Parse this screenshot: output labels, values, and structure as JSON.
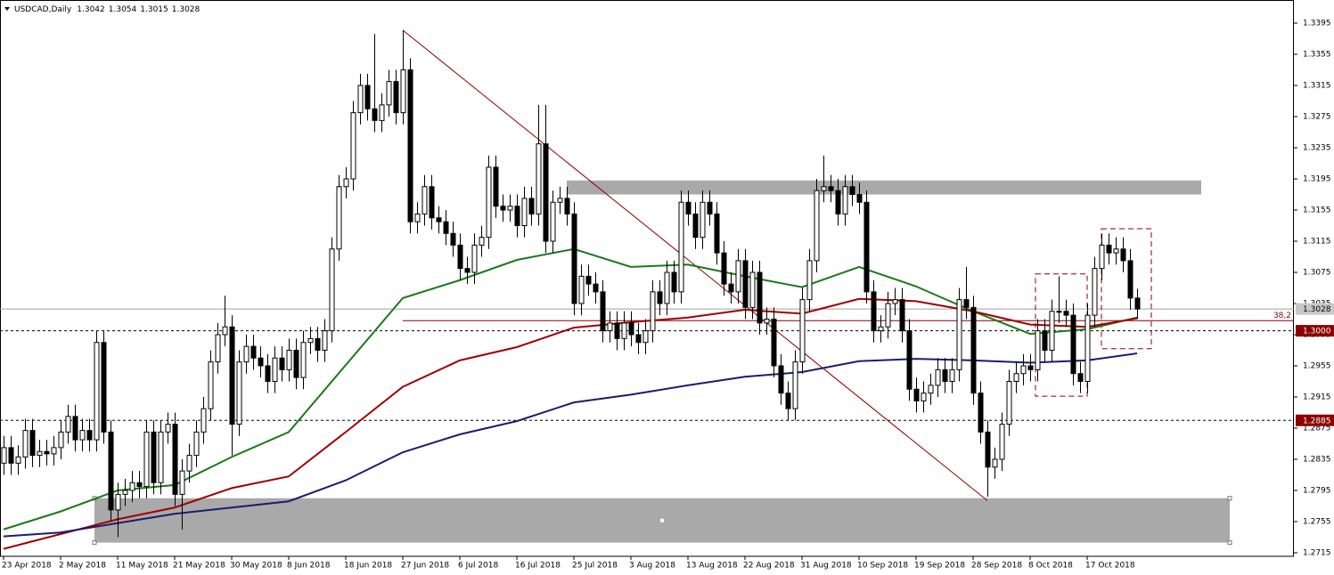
{
  "chart_data": {
    "type": "candlestick",
    "title": "USDCAD,Daily",
    "categories": [
      "23 Apr 2018",
      null,
      null,
      null,
      null,
      null,
      null,
      null,
      "2 May 2018",
      null,
      null,
      null,
      null,
      null,
      null,
      null,
      "11 May 2018",
      null,
      null,
      null,
      null,
      null,
      null,
      null,
      "21 May 2018",
      null,
      null,
      null,
      null,
      null,
      null,
      null,
      "30 May 2018",
      null,
      null,
      null,
      null,
      null,
      null,
      null,
      "8 Jun 2018",
      null,
      null,
      null,
      null,
      null,
      null,
      null,
      "18 Jun 2018",
      null,
      null,
      null,
      null,
      null,
      null,
      null,
      "27 Jun 2018",
      null,
      null,
      null,
      null,
      null,
      null,
      null,
      "6 Jul 2018",
      null,
      null,
      null,
      null,
      null,
      null,
      null,
      "16 Jul 2018",
      null,
      null,
      null,
      null,
      null,
      null,
      null,
      "25 Jul 2018",
      null,
      null,
      null,
      null,
      null,
      null,
      null,
      "3 Aug 2018",
      null,
      null,
      null,
      null,
      null,
      null,
      null,
      "13 Aug 2018",
      null,
      null,
      null,
      null,
      null,
      null,
      null,
      "22 Aug 2018",
      null,
      null,
      null,
      null,
      null,
      null,
      null,
      "31 Aug 2018",
      null,
      null,
      null,
      null,
      null,
      null,
      null,
      "10 Sep 2018",
      null,
      null,
      null,
      null,
      null,
      null,
      null,
      "19 Sep 2018",
      null,
      null,
      null,
      null,
      null,
      null,
      null,
      "28 Sep 2018",
      null,
      null,
      null,
      null,
      null,
      null,
      null,
      "8 Oct 2018",
      null,
      null,
      null,
      null,
      null,
      null,
      null,
      "17 Oct 2018",
      null,
      null,
      null,
      null,
      null,
      null,
      null
    ],
    "open": [
      1.283,
      1.285,
      1.283,
      1.2838,
      1.2872,
      1.284,
      1.2845,
      1.2842,
      1.285,
      1.287,
      1.289,
      1.286,
      1.2872,
      1.286,
      1.2985,
      1.287,
      1.277,
      1.279,
      1.2795,
      1.2805,
      1.28,
      1.287,
      1.2805,
      1.287,
      1.288,
      1.279,
      1.282,
      1.284,
      1.287,
      1.29,
      1.296,
      1.2995,
      1.3005,
      1.288,
      1.296,
      1.298,
      1.2965,
      1.2955,
      1.2935,
      1.2965,
      1.295,
      1.2975,
      1.294,
      1.2985,
      1.299,
      1.2975,
      1.3,
      1.3105,
      1.3185,
      1.3195,
      1.328,
      1.3315,
      1.3285,
      1.327,
      1.329,
      1.332,
      1.328,
      1.3335,
      1.314,
      1.315,
      1.3185,
      1.3145,
      1.314,
      1.3125,
      1.311,
      1.308,
      1.3075,
      1.311,
      1.312,
      1.321,
      1.316,
      1.3155,
      1.316,
      1.3135,
      1.317,
      1.315,
      1.324,
      1.3115,
      1.3165,
      1.317,
      1.315,
      1.3035,
      1.307,
      1.306,
      1.305,
      1.3,
      1.301,
      1.299,
      1.301,
      1.2995,
      1.2985,
      1.3,
      1.305,
      1.3035,
      1.3075,
      1.305,
      1.3165,
      1.315,
      1.312,
      1.3165,
      1.315,
      1.31,
      1.306,
      1.305,
      1.309,
      1.303,
      1.3075,
      1.301,
      1.3015,
      1.2955,
      1.292,
      1.29,
      1.296,
      1.304,
      1.309,
      1.318,
      1.3185,
      1.318,
      1.315,
      1.3185,
      1.3175,
      1.3165,
      1.305,
      1.3,
      1.3005,
      1.3035,
      1.304,
      1.3,
      1.2925,
      1.291,
      1.292,
      1.293,
      1.295,
      1.2935,
      1.295,
      1.304,
      1.303,
      1.292,
      1.287,
      1.2825,
      1.2835,
      1.288,
      1.2935,
      1.2945,
      1.2955,
      1.295,
      1.3,
      1.2975,
      1.3025,
      1.3025,
      1.302,
      1.2945,
      1.2935,
      1.302,
      1.308,
      1.311,
      1.31,
      1.3105,
      1.309,
      1.3042
    ],
    "high": [
      1.2865,
      1.2865,
      1.2853,
      1.2887,
      1.2887,
      1.286,
      1.286,
      1.2865,
      1.2885,
      1.2905,
      1.2905,
      1.2887,
      1.2887,
      1.3,
      1.3,
      1.2885,
      1.2805,
      1.281,
      1.282,
      1.282,
      1.2885,
      1.2885,
      1.2885,
      1.2895,
      1.2895,
      1.2835,
      1.2855,
      1.2885,
      1.2915,
      1.2975,
      1.301,
      1.3045,
      1.302,
      1.2975,
      1.2995,
      1.2995,
      1.298,
      1.297,
      1.298,
      1.298,
      1.299,
      1.299,
      1.3,
      1.3005,
      1.3005,
      1.3015,
      1.312,
      1.32,
      1.321,
      1.3295,
      1.333,
      1.333,
      1.3381,
      1.3305,
      1.3335,
      1.3335,
      1.3386,
      1.335,
      1.3165,
      1.32,
      1.32,
      1.316,
      1.3155,
      1.314,
      1.3125,
      1.3095,
      1.3125,
      1.3135,
      1.3225,
      1.3225,
      1.3175,
      1.3175,
      1.3175,
      1.3185,
      1.3185,
      1.329,
      1.329,
      1.318,
      1.3185,
      1.3185,
      1.3165,
      1.3085,
      1.3085,
      1.3075,
      1.3065,
      1.3025,
      1.3025,
      1.3025,
      1.3025,
      1.301,
      1.3015,
      1.3065,
      1.3065,
      1.309,
      1.309,
      1.318,
      1.318,
      1.3165,
      1.318,
      1.318,
      1.3165,
      1.3115,
      1.3075,
      1.3105,
      1.3105,
      1.309,
      1.309,
      1.303,
      1.303,
      1.297,
      1.2935,
      1.2975,
      1.3055,
      1.3105,
      1.3195,
      1.3225,
      1.32,
      1.3195,
      1.32,
      1.32,
      1.319,
      1.318,
      1.3065,
      1.302,
      1.305,
      1.3055,
      1.3055,
      1.3015,
      1.294,
      1.2935,
      1.2945,
      1.2965,
      1.2965,
      1.2965,
      1.3055,
      1.3082,
      1.3045,
      1.2935,
      1.2885,
      1.285,
      1.2895,
      1.295,
      1.296,
      1.297,
      1.297,
      1.3015,
      1.3015,
      1.304,
      1.307,
      1.304,
      1.3035,
      1.296,
      1.3035,
      1.3095,
      1.3125,
      1.3125,
      1.312,
      1.312,
      1.3105,
      1.3054
    ],
    "low": [
      1.2815,
      1.2815,
      1.2815,
      1.2823,
      1.2825,
      1.2825,
      1.2827,
      1.2827,
      1.2835,
      1.2855,
      1.2845,
      1.2845,
      1.2845,
      1.2845,
      1.2855,
      1.2755,
      1.2735,
      1.2775,
      1.278,
      1.2785,
      1.2785,
      1.279,
      1.279,
      1.2855,
      1.2775,
      1.2745,
      1.2805,
      1.2825,
      1.2855,
      1.2885,
      1.2945,
      1.298,
      1.284,
      1.2865,
      1.2945,
      1.295,
      1.294,
      1.292,
      1.292,
      1.2935,
      1.2935,
      1.2925,
      1.2925,
      1.297,
      1.296,
      1.296,
      1.2985,
      1.309,
      1.317,
      1.318,
      1.3265,
      1.327,
      1.3255,
      1.3255,
      1.3275,
      1.3265,
      1.3265,
      1.3125,
      1.3125,
      1.3135,
      1.313,
      1.3125,
      1.311,
      1.3095,
      1.3065,
      1.306,
      1.306,
      1.3095,
      1.3105,
      1.3145,
      1.314,
      1.314,
      1.312,
      1.312,
      1.3135,
      1.3135,
      1.31,
      1.31,
      1.315,
      1.3135,
      1.302,
      1.302,
      1.3045,
      1.3035,
      1.2985,
      1.2985,
      1.2975,
      1.2975,
      1.298,
      1.297,
      1.297,
      1.2985,
      1.302,
      1.302,
      1.3035,
      1.3035,
      1.3135,
      1.3105,
      1.3105,
      1.3135,
      1.3085,
      1.3045,
      1.3035,
      1.3035,
      1.3015,
      1.3015,
      1.2995,
      1.2995,
      1.294,
      1.2905,
      1.2885,
      1.2885,
      1.2945,
      1.3025,
      1.3075,
      1.3165,
      1.3165,
      1.3135,
      1.3135,
      1.316,
      1.315,
      1.3035,
      1.2985,
      1.2985,
      1.299,
      1.302,
      1.2985,
      1.291,
      1.2895,
      1.2895,
      1.2905,
      1.2915,
      1.292,
      1.292,
      1.2935,
      1.3015,
      1.2905,
      1.2855,
      1.2787,
      1.281,
      1.282,
      1.2865,
      1.292,
      1.293,
      1.2935,
      1.2935,
      1.296,
      1.296,
      1.301,
      1.3005,
      1.293,
      1.292,
      1.292,
      1.3005,
      1.3065,
      1.3085,
      1.3085,
      1.3075,
      1.3027,
      1.3015
    ],
    "close": [
      1.285,
      1.283,
      1.2838,
      1.2872,
      1.284,
      1.2845,
      1.2842,
      1.285,
      1.287,
      1.289,
      1.286,
      1.2872,
      1.286,
      1.2985,
      1.287,
      1.277,
      1.279,
      1.2795,
      1.2805,
      1.28,
      1.287,
      1.2805,
      1.287,
      1.288,
      1.279,
      1.282,
      1.284,
      1.287,
      1.29,
      1.296,
      1.2995,
      1.3005,
      1.288,
      1.296,
      1.298,
      1.2965,
      1.2955,
      1.2935,
      1.2965,
      1.295,
      1.2975,
      1.294,
      1.2985,
      1.299,
      1.2975,
      1.3,
      1.3105,
      1.3185,
      1.3195,
      1.328,
      1.3315,
      1.3285,
      1.327,
      1.329,
      1.332,
      1.328,
      1.3335,
      1.314,
      1.315,
      1.3185,
      1.3145,
      1.314,
      1.3125,
      1.311,
      1.308,
      1.3075,
      1.311,
      1.312,
      1.321,
      1.316,
      1.3155,
      1.316,
      1.3135,
      1.317,
      1.315,
      1.324,
      1.3115,
      1.3165,
      1.317,
      1.315,
      1.3035,
      1.307,
      1.306,
      1.305,
      1.3,
      1.301,
      1.299,
      1.301,
      1.2995,
      1.2985,
      1.3,
      1.305,
      1.3035,
      1.3075,
      1.305,
      1.3165,
      1.315,
      1.312,
      1.3165,
      1.315,
      1.31,
      1.306,
      1.305,
      1.309,
      1.303,
      1.3075,
      1.301,
      1.3015,
      1.2955,
      1.292,
      1.29,
      1.296,
      1.304,
      1.309,
      1.318,
      1.3185,
      1.318,
      1.315,
      1.3185,
      1.3175,
      1.3165,
      1.305,
      1.3,
      1.3005,
      1.3035,
      1.304,
      1.3,
      1.2925,
      1.291,
      1.292,
      1.293,
      1.295,
      1.2935,
      1.295,
      1.304,
      1.303,
      1.292,
      1.287,
      1.2825,
      1.2835,
      1.288,
      1.2935,
      1.2945,
      1.2955,
      1.295,
      1.3,
      1.2975,
      1.3025,
      1.3025,
      1.302,
      1.2945,
      1.2935,
      1.302,
      1.308,
      1.311,
      1.31,
      1.3105,
      1.309,
      1.3042,
      1.3028
    ],
    "lines": [
      {
        "color": "#1a7a1a",
        "x": [
          0,
          8,
          16,
          24,
          32,
          40,
          48,
          56,
          64,
          72,
          80,
          88,
          96,
          104,
          112,
          120,
          128,
          136,
          144,
          152,
          159
        ],
        "values": [
          1.2745,
          1.2768,
          1.2795,
          1.2802,
          1.2838,
          1.287,
          1.2956,
          1.3042,
          1.3065,
          1.3091,
          1.3105,
          1.3082,
          1.3085,
          1.307,
          1.3056,
          1.3082,
          1.3057,
          1.3025,
          1.2996,
          1.3002,
          1.3017
        ]
      },
      {
        "color": "#a00000",
        "x": [
          0,
          8,
          16,
          24,
          32,
          40,
          48,
          56,
          64,
          72,
          80,
          88,
          96,
          104,
          112,
          120,
          128,
          136,
          144,
          152,
          159
        ],
        "values": [
          1.272,
          1.2739,
          1.2758,
          1.2773,
          1.2798,
          1.2813,
          1.287,
          1.2928,
          1.2962,
          1.2979,
          1.3004,
          1.3011,
          1.3017,
          1.3027,
          1.3022,
          1.3041,
          1.3038,
          1.3025,
          1.3008,
          1.3005,
          1.3016
        ]
      },
      {
        "color": "#1c1c6e",
        "x": [
          0,
          8,
          16,
          24,
          32,
          40,
          48,
          56,
          64,
          72,
          80,
          88,
          96,
          104,
          112,
          120,
          128,
          136,
          144,
          152,
          159
        ],
        "values": [
          1.2736,
          1.2741,
          1.2753,
          1.2765,
          1.2773,
          1.2781,
          1.2808,
          1.2844,
          1.2867,
          1.2884,
          1.2908,
          1.2918,
          1.293,
          1.2941,
          1.2947,
          1.2961,
          1.2964,
          1.2962,
          1.2959,
          1.2962,
          1.2971
        ]
      }
    ],
    "zones": [
      {
        "x": [
          79,
          168
        ],
        "y": [
          1.3175,
          1.3193
        ],
        "color": "#a9a9a9"
      },
      {
        "x": [
          12.75,
          172
        ],
        "y": [
          1.2728,
          1.2785
        ],
        "color": "#a9a9a9"
      }
    ],
    "trendline": {
      "x": [
        56,
        138
      ],
      "y": [
        1.3386,
        1.2782
      ],
      "color": "#8b0000"
    },
    "boxes": [
      {
        "x": [
          144.75,
          152
        ],
        "y": [
          1.2916,
          1.3073
        ],
        "color": "#8b0000"
      },
      {
        "x": [
          154,
          161
        ],
        "y": [
          1.2977,
          1.3131
        ],
        "color": "#8b0000"
      }
    ],
    "fib": {
      "value": 1.3013,
      "label": "38,2",
      "from": 56,
      "color": "#8b0000"
    },
    "levels": [
      {
        "value": 1.3,
        "label": "1.3000",
        "color": "#8b0000"
      },
      {
        "value": 1.2885,
        "color": "#8b0000"
      }
    ],
    "ylim": [
      1.2715,
      1.3395
    ],
    "yticks": [
      1.3395,
      1.3355,
      1.3315,
      1.3275,
      1.3235,
      1.3195,
      1.3155,
      1.3115,
      1.3075,
      1.3035,
      1.2995,
      1.2955,
      1.2915,
      1.2875,
      1.2835,
      1.2795,
      1.2755,
      1.2715
    ]
  }
}
